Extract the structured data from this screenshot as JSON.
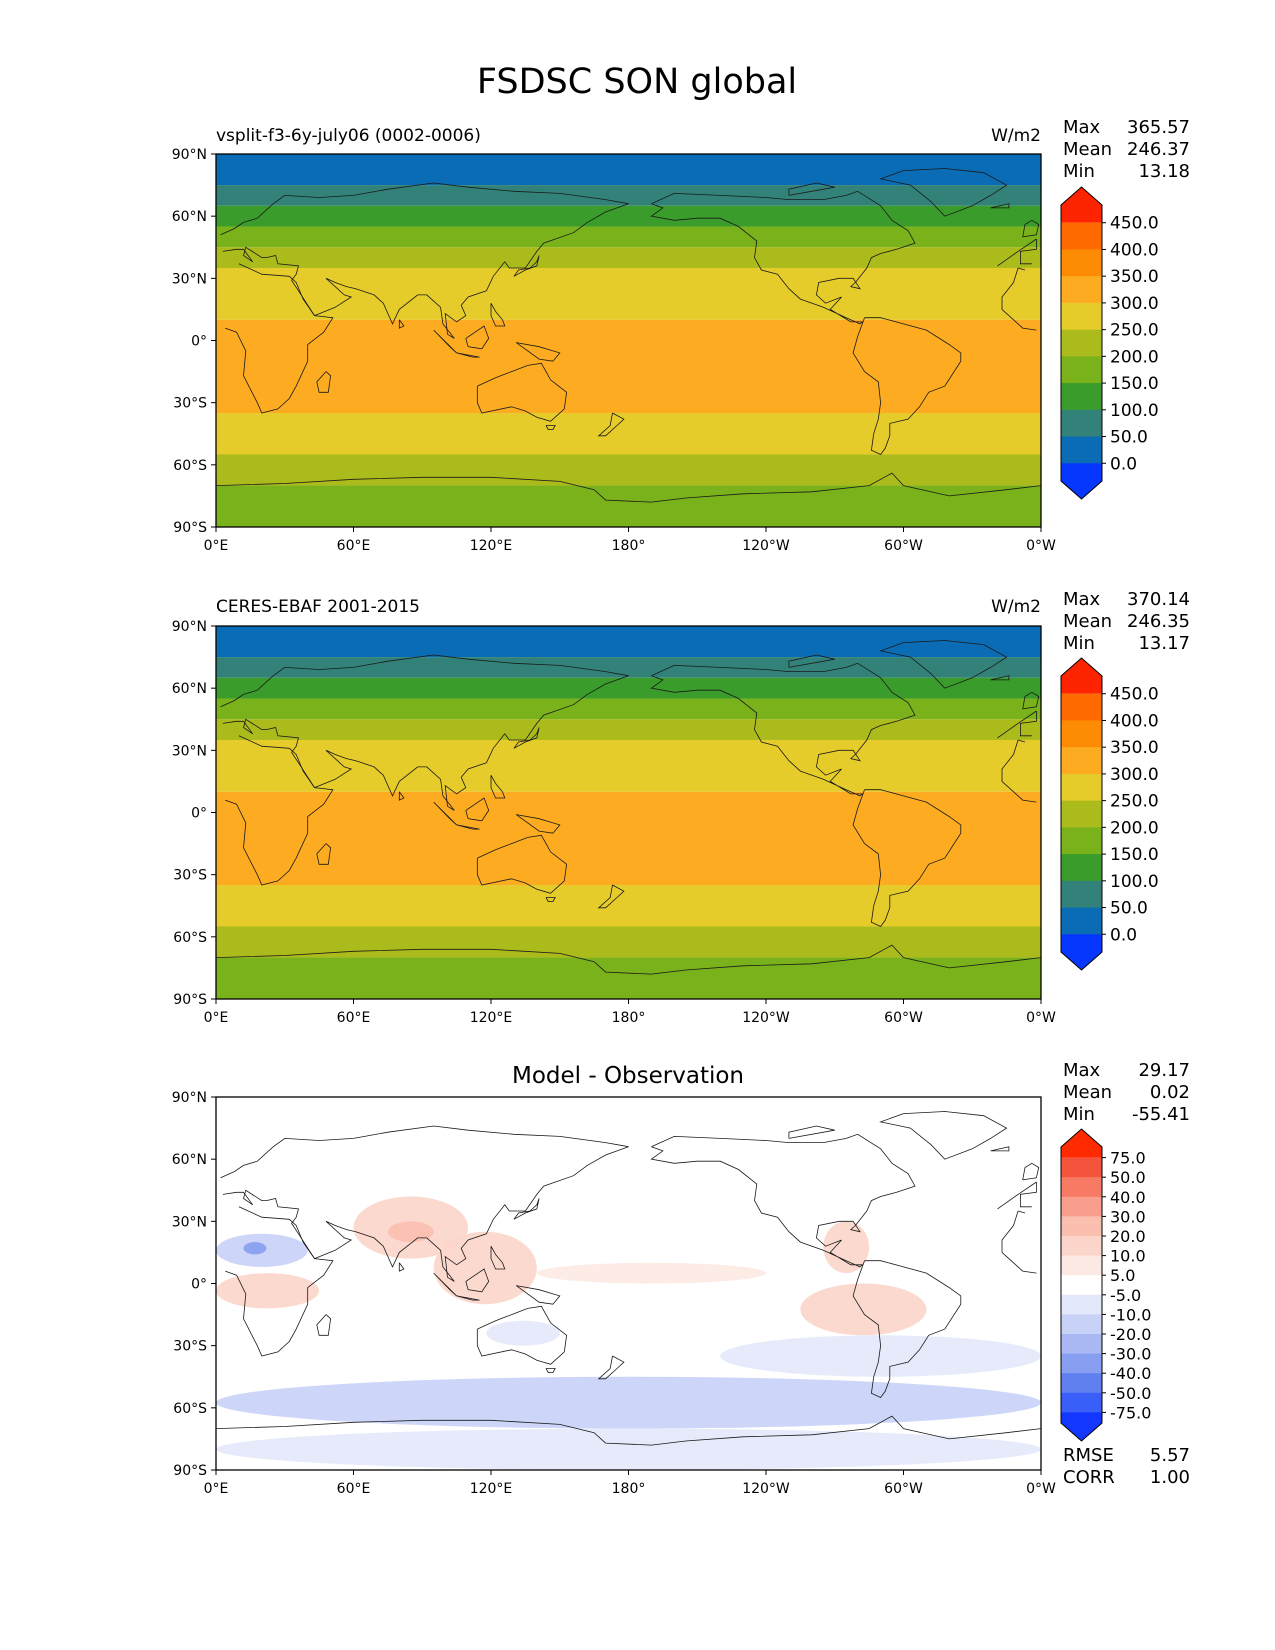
{
  "figure_title": "FSDSC SON global",
  "x_ticks": [
    "0°E",
    "60°E",
    "120°E",
    "180°",
    "120°W",
    "60°W",
    "0°W"
  ],
  "y_ticks": [
    "90°N",
    "60°N",
    "30°N",
    "0°",
    "30°S",
    "60°S",
    "90°S"
  ],
  "chart_data": [
    {
      "type": "heatmap",
      "panel": "model",
      "title": "",
      "left_label": "vsplit-f3-6y-july06 (0002-0006)",
      "units": "W/m2",
      "stats": [
        {
          "label": "Max",
          "value": "365.57"
        },
        {
          "label": "Mean",
          "value": "246.37"
        },
        {
          "label": "Min",
          "value": "13.18"
        }
      ],
      "colorbar": {
        "levels": [
          "450.0",
          "400.0",
          "350.0",
          "300.0",
          "250.0",
          "200.0",
          "150.0",
          "100.0",
          "50.0",
          "0.0"
        ],
        "colors": [
          "#ff2400",
          "#ff6a00",
          "#fd8c04",
          "#fdac22",
          "#e6cc2a",
          "#abbb1b",
          "#79b21a",
          "#3a9c2a",
          "#33827a",
          "#0a6cb5",
          "#0637ff"
        ],
        "extend": "both"
      },
      "xlim": [
        0,
        360
      ],
      "ylim": [
        -90,
        90
      ],
      "lat_bands": [
        {
          "lat": [
            75,
            90
          ],
          "value": 25
        },
        {
          "lat": [
            65,
            75
          ],
          "value": 75
        },
        {
          "lat": [
            55,
            65
          ],
          "value": 125
        },
        {
          "lat": [
            45,
            55
          ],
          "value": 175
        },
        {
          "lat": [
            35,
            45
          ],
          "value": 225
        },
        {
          "lat": [
            10,
            35
          ],
          "value": 275
        },
        {
          "lat": [
            -35,
            10
          ],
          "value": 325
        },
        {
          "lat": [
            -55,
            -35
          ],
          "value": 275
        },
        {
          "lat": [
            -70,
            -55
          ],
          "value": 225
        },
        {
          "lat": [
            -90,
            -70
          ],
          "value": 175
        }
      ]
    },
    {
      "type": "heatmap",
      "panel": "observation",
      "title": "",
      "left_label": "CERES-EBAF 2001-2015",
      "units": "W/m2",
      "stats": [
        {
          "label": "Max",
          "value": "370.14"
        },
        {
          "label": "Mean",
          "value": "246.35"
        },
        {
          "label": "Min",
          "value": "13.17"
        }
      ],
      "colorbar": {
        "levels": [
          "450.0",
          "400.0",
          "350.0",
          "300.0",
          "250.0",
          "200.0",
          "150.0",
          "100.0",
          "50.0",
          "0.0"
        ],
        "colors": [
          "#ff2400",
          "#ff6a00",
          "#fd8c04",
          "#fdac22",
          "#e6cc2a",
          "#abbb1b",
          "#79b21a",
          "#3a9c2a",
          "#33827a",
          "#0a6cb5",
          "#0637ff"
        ],
        "extend": "both"
      },
      "xlim": [
        0,
        360
      ],
      "ylim": [
        -90,
        90
      ],
      "lat_bands": [
        {
          "lat": [
            75,
            90
          ],
          "value": 25
        },
        {
          "lat": [
            65,
            75
          ],
          "value": 75
        },
        {
          "lat": [
            55,
            65
          ],
          "value": 125
        },
        {
          "lat": [
            45,
            55
          ],
          "value": 175
        },
        {
          "lat": [
            35,
            45
          ],
          "value": 225
        },
        {
          "lat": [
            10,
            35
          ],
          "value": 275
        },
        {
          "lat": [
            -35,
            10
          ],
          "value": 325
        },
        {
          "lat": [
            -55,
            -35
          ],
          "value": 275
        },
        {
          "lat": [
            -70,
            -55
          ],
          "value": 225
        },
        {
          "lat": [
            -90,
            -70
          ],
          "value": 175
        }
      ]
    },
    {
      "type": "heatmap",
      "panel": "difference",
      "title": "Model - Observation",
      "left_label": "",
      "units": "",
      "stats": [
        {
          "label": "Max",
          "value": "29.17"
        },
        {
          "label": "Mean",
          "value": "0.02"
        },
        {
          "label": "Min",
          "value": "-55.41"
        }
      ],
      "extra_stats": [
        {
          "label": "RMSE",
          "value": "5.57"
        },
        {
          "label": "CORR",
          "value": "1.00"
        }
      ],
      "colorbar": {
        "levels": [
          "75.0",
          "50.0",
          "40.0",
          "30.0",
          "20.0",
          "10.0",
          "5.0",
          "-5.0",
          "-10.0",
          "-20.0",
          "-30.0",
          "-40.0",
          "-50.0",
          "-75.0"
        ],
        "colors": [
          "#ff2a00",
          "#f5543c",
          "#f77a64",
          "#f99e8c",
          "#fbbfb0",
          "#fcd5ca",
          "#fde9e3",
          "#ffffff",
          "#e3e8fb",
          "#c8d2f7",
          "#a9b8f3",
          "#889ef0",
          "#6080f0",
          "#3a5ef8",
          "#1437ff"
        ],
        "extend": "both"
      },
      "xlim": [
        0,
        360
      ],
      "ylim": [
        -90,
        90
      ],
      "anomalies": [
        {
          "lon": [
            0,
            40
          ],
          "lat": [
            8,
            24
          ],
          "value": -20
        },
        {
          "lon": [
            12,
            22
          ],
          "lat": [
            14,
            20
          ],
          "value": -35
        },
        {
          "lon": [
            0,
            45
          ],
          "lat": [
            -12,
            5
          ],
          "value": 15
        },
        {
          "lon": [
            60,
            110
          ],
          "lat": [
            12,
            42
          ],
          "value": 15
        },
        {
          "lon": [
            75,
            95
          ],
          "lat": [
            20,
            30
          ],
          "value": 25
        },
        {
          "lon": [
            95,
            140
          ],
          "lat": [
            -10,
            25
          ],
          "value": 12
        },
        {
          "lon": [
            140,
            240
          ],
          "lat": [
            0,
            10
          ],
          "value": 8
        },
        {
          "lon": [
            255,
            310
          ],
          "lat": [
            -25,
            0
          ],
          "value": 12
        },
        {
          "lon": [
            265,
            285
          ],
          "lat": [
            5,
            30
          ],
          "value": 10
        },
        {
          "lon": [
            118,
            150
          ],
          "lat": [
            -30,
            -18
          ],
          "value": -10
        },
        {
          "lon": [
            220,
            360
          ],
          "lat": [
            -45,
            -25
          ],
          "value": -8
        },
        {
          "lon": [
            0,
            360
          ],
          "lat": [
            -70,
            -45
          ],
          "value": -12
        },
        {
          "lon": [
            0,
            360
          ],
          "lat": [
            -90,
            -70
          ],
          "value": -8
        }
      ]
    }
  ]
}
